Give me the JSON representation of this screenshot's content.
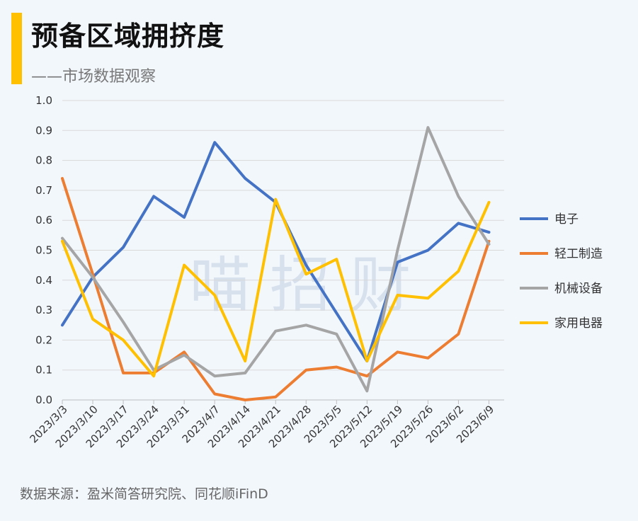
{
  "header": {
    "title": "预备区域拥挤度",
    "subtitle": "——市场数据观察"
  },
  "watermark": "喵 招 财",
  "source": "数据来源：盈米简答研究院、同花顺iFinD",
  "chart_data": {
    "type": "line",
    "title": "预备区域拥挤度",
    "categories": [
      "2023/3/3",
      "2023/3/10",
      "2023/3/17",
      "2023/3/24",
      "2023/3/31",
      "2023/4/7",
      "2023/4/14",
      "2023/4/21",
      "2023/4/28",
      "2023/5/5",
      "2023/5/12",
      "2023/5/19",
      "2023/5/26",
      "2023/6/2",
      "2023/6/9"
    ],
    "ylim": [
      0,
      1.0
    ],
    "yticks": [
      "0.0",
      "0.1",
      "0.2",
      "0.3",
      "0.4",
      "0.5",
      "0.6",
      "0.7",
      "0.8",
      "0.9",
      "1.0"
    ],
    "grid": true,
    "legend_position": "right",
    "series": [
      {
        "name": "电子",
        "color": "#4472c4",
        "values": [
          0.25,
          0.41,
          0.51,
          0.68,
          0.61,
          0.86,
          0.74,
          0.66,
          0.45,
          0.29,
          0.13,
          0.46,
          0.5,
          0.59,
          0.56
        ]
      },
      {
        "name": "轻工制造",
        "color": "#ed7d31",
        "values": [
          0.74,
          0.42,
          0.09,
          0.09,
          0.16,
          0.02,
          0.0,
          0.01,
          0.1,
          0.11,
          0.08,
          0.16,
          0.14,
          0.22,
          0.53
        ]
      },
      {
        "name": "机械设备",
        "color": "#a5a5a5",
        "values": [
          0.54,
          0.41,
          0.26,
          0.1,
          0.15,
          0.08,
          0.09,
          0.23,
          0.25,
          0.22,
          0.03,
          0.5,
          0.91,
          0.68,
          0.52
        ]
      },
      {
        "name": "家用电器",
        "color": "#ffc000",
        "values": [
          0.53,
          0.27,
          0.2,
          0.08,
          0.45,
          0.35,
          0.13,
          0.67,
          0.42,
          0.47,
          0.13,
          0.35,
          0.34,
          0.43,
          0.66
        ]
      }
    ]
  }
}
